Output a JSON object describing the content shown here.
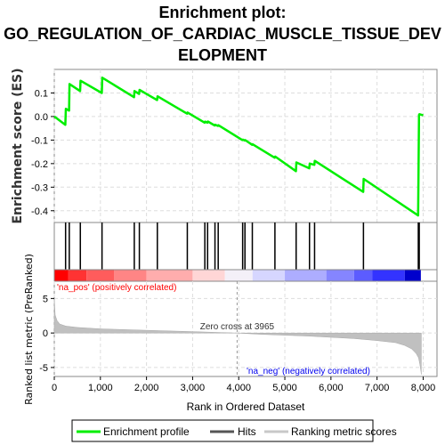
{
  "title_lines": [
    "Enrichment plot:",
    "GO_REGULATION_OF_CARDIAC_MUSCLE_TISSUE_DEV",
    "ELOPMENT"
  ],
  "chart_data": {
    "type": "line",
    "top_panel": {
      "ylabel": "Enrichment score (ES)",
      "ylim": [
        -0.45,
        0.2
      ],
      "yticks": [
        -0.4,
        -0.3,
        -0.2,
        -0.1,
        0.0,
        0.1
      ],
      "ytick_labels": [
        "-0.4",
        "-0.3",
        "-0.2",
        "-0.1",
        "0.0",
        "0.1"
      ],
      "grid": true,
      "series": [
        {
          "name": "Enrichment profile",
          "color": "#00ee00",
          "x": [
            0,
            240,
            250,
            320,
            330,
            560,
            570,
            1030,
            1040,
            1730,
            1740,
            1840,
            1850,
            2230,
            2240,
            2880,
            2890,
            3260,
            3270,
            3320,
            3330,
            3480,
            3490,
            3550,
            3560,
            4080,
            4090,
            4130,
            4140,
            4290,
            4300,
            4780,
            4790,
            5240,
            5250,
            5530,
            5540,
            5640,
            5650,
            6700,
            6710,
            7890,
            7900,
            7910,
            7920,
            8000
          ],
          "y": [
            0.0,
            -0.035,
            0.033,
            0.025,
            0.138,
            0.108,
            0.152,
            0.1,
            0.165,
            0.082,
            0.108,
            0.096,
            0.113,
            0.07,
            0.086,
            0.012,
            0.017,
            -0.026,
            -0.022,
            -0.026,
            -0.021,
            -0.038,
            -0.035,
            -0.04,
            -0.037,
            -0.1,
            -0.098,
            -0.102,
            -0.1,
            -0.12,
            -0.118,
            -0.175,
            -0.17,
            -0.232,
            -0.195,
            -0.22,
            -0.2,
            -0.205,
            -0.188,
            -0.32,
            -0.265,
            -0.42,
            -0.21,
            0.007,
            0.01,
            0.005
          ]
        }
      ]
    },
    "hits": [
      240,
      250,
      320,
      330,
      560,
      570,
      1030,
      1040,
      1730,
      1740,
      1840,
      1850,
      2230,
      2240,
      2880,
      2890,
      3260,
      3270,
      3320,
      3330,
      3480,
      3490,
      3550,
      3560,
      4080,
      4090,
      4130,
      4140,
      4290,
      4300,
      4780,
      4790,
      5240,
      5250,
      5530,
      5540,
      5640,
      5650,
      6700,
      6710,
      7890,
      7900,
      7910,
      7920
    ],
    "heat_bar": {
      "colors": [
        "#ff0000",
        "#ff3333",
        "#ff5c5c",
        "#ff8585",
        "#ffadad",
        "#ffd6d6",
        "#f4f0f8",
        "#d6d6ff",
        "#adadff",
        "#8585ff",
        "#5c5cff",
        "#3333ff",
        "#0000cc"
      ],
      "boundaries": [
        0,
        300,
        700,
        1300,
        2000,
        3000,
        3700,
        4300,
        5000,
        5900,
        6500,
        6900,
        7600,
        7950
      ]
    },
    "bottom_panel": {
      "ylabel": "Ranked list metric (PreRanked)",
      "ylim": [
        -6.3,
        7.5
      ],
      "yticks": [
        -5,
        0,
        5
      ],
      "ytick_labels": [
        "-5",
        "0",
        "5"
      ],
      "metric_curve": {
        "x": [
          0,
          20,
          60,
          120,
          250,
          500,
          1000,
          2000,
          3000,
          3965,
          4500,
          5500,
          6500,
          7000,
          7400,
          7600,
          7750,
          7850,
          7900,
          7930,
          7950,
          7960
        ],
        "y": [
          5.0,
          2.6,
          1.8,
          1.3,
          1.0,
          0.8,
          0.6,
          0.4,
          0.2,
          0.0,
          -0.2,
          -0.45,
          -0.8,
          -1.1,
          -1.4,
          -1.8,
          -2.3,
          -3.0,
          -3.6,
          -4.6,
          -5.5,
          -6.0
        ]
      },
      "zero_cross_label": "Zero cross at 3965",
      "zero_cross_x": 3965,
      "pos_label": "'na_pos' (positively correlated)",
      "neg_label": "'na_neg' (negatively correlated)"
    },
    "xlabel": "Rank in Ordered Dataset",
    "xlim": [
      0,
      8300
    ],
    "xticks": [
      0,
      1000,
      2000,
      3000,
      4000,
      5000,
      6000,
      7000,
      8000
    ],
    "xtick_labels": [
      "0",
      "1,000",
      "2,000",
      "3,000",
      "4,000",
      "5,000",
      "6,000",
      "7,000",
      "8,000"
    ],
    "legend": {
      "placement": "bottom",
      "entries": [
        {
          "label": "Enrichment profile",
          "color": "#00ee00"
        },
        {
          "label": "Hits",
          "color": "#000000"
        },
        {
          "label": "Ranking metric scores",
          "color": "#c0c0c0"
        }
      ]
    }
  }
}
